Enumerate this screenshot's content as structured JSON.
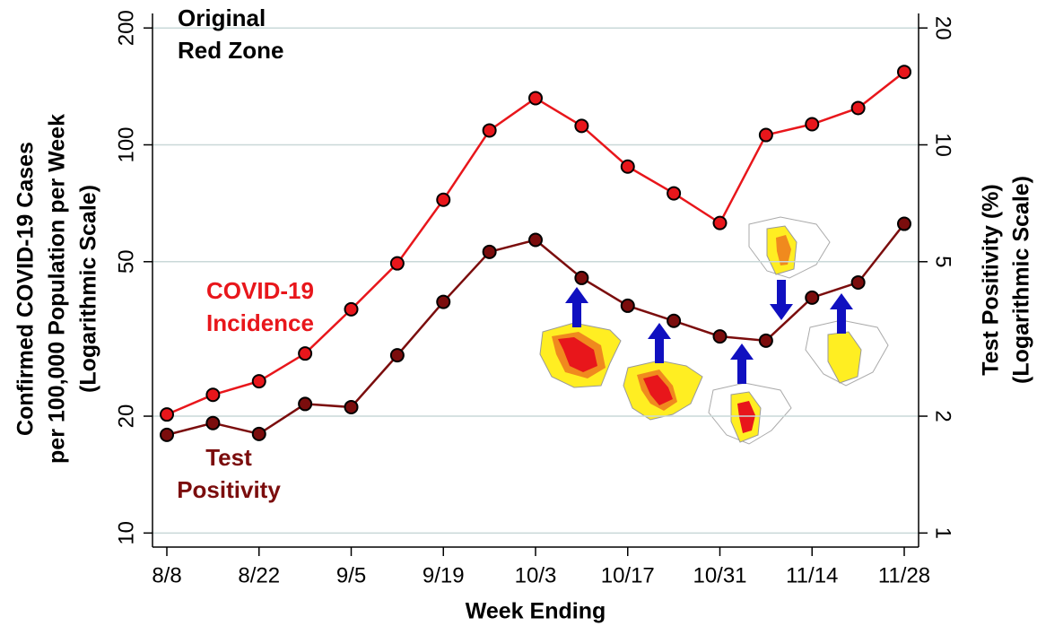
{
  "chart_data": {
    "type": "line",
    "ylabel": [
      "Confirmed COVID-19 Cases",
      "per 100,000 Population per Week",
      "(Logarithmic Scale)"
    ],
    "y2label": [
      "Test Positivity (%)",
      "(Logarithmic Scale)"
    ],
    "xlabel": "Week Ending",
    "categories": [
      "8/8",
      null,
      "8/22",
      null,
      "9/5",
      null,
      "9/19",
      null,
      "10/3",
      null,
      "10/17",
      null,
      "10/31",
      null,
      "11/14",
      null,
      "11/28"
    ],
    "series": [
      {
        "name": "COVID-19 Incidence",
        "color": "#e8161b",
        "marker": "#e8161b",
        "values": [
          20.2,
          22.7,
          24.6,
          29.0,
          37.7,
          49.5,
          72.2,
          108.9,
          131.9,
          111.9,
          87.9,
          75.0,
          62.9,
          106.0,
          113.0,
          124.4,
          154.1
        ]
      },
      {
        "name": "Test Positivity",
        "color": "#7b0d0d",
        "marker": "#7b0d0d",
        "axis": "y2",
        "values": [
          1.79,
          1.92,
          1.8,
          2.15,
          2.11,
          2.87,
          3.94,
          5.3,
          5.69,
          4.54,
          3.85,
          3.52,
          3.21,
          3.13,
          4.04,
          4.42,
          6.26
        ]
      }
    ],
    "annotations": [
      {
        "lines": [
          "Original",
          "Red Zone"
        ],
        "color": "#000000"
      },
      {
        "lines": [
          "COVID-19",
          "Incidence"
        ],
        "color": "#e8161b"
      },
      {
        "lines": [
          "Test",
          "Positivity"
        ],
        "color": "#7b0d0d"
      }
    ],
    "log_scale": true,
    "grid": true,
    "ylim": [
      9.2,
      218
    ],
    "yticks": [
      10,
      20,
      50,
      100,
      200
    ],
    "y2lim": [
      0.92,
      21.8
    ],
    "y2ticks": [
      1,
      2,
      5,
      10,
      20
    ]
  }
}
